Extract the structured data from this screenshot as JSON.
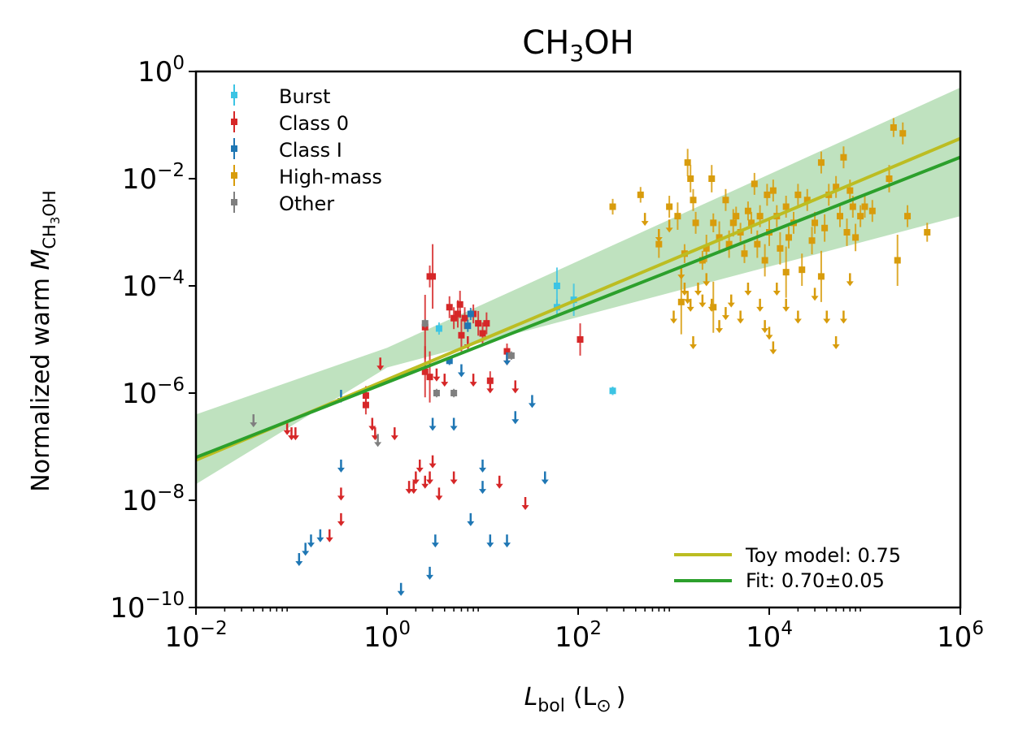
{
  "chart_data": {
    "type": "scatter",
    "title": "CH3OH",
    "title_parts": {
      "base": "CH",
      "sub": "3",
      "rest": "OH"
    },
    "xlabel": "L_bol (L_sun)",
    "xlabel_parts": {
      "main": "L",
      "sub": "bol",
      "unit": "(L",
      "unit_sym": "⊙",
      "unit_close": ")"
    },
    "ylabel": "Normalized warm M_CH3OH",
    "ylabel_parts": {
      "main": "Normalized warm ",
      "sym": "M",
      "sub1": "CH",
      "sub2": "3",
      "sub3": "OH"
    },
    "xscale": "log",
    "yscale": "log",
    "xlim": [
      0.01,
      1000000
    ],
    "ylim": [
      1e-10,
      1
    ],
    "x_tick_exponents": [
      -2,
      0,
      2,
      4,
      6
    ],
    "y_tick_exponents": [
      -10,
      -8,
      -6,
      -4,
      -2,
      0
    ],
    "tick_base": "10",
    "legend_position": "top-left",
    "fit_legend_position": "bottom-right",
    "series": [
      {
        "name": "Burst",
        "color": "#3cc4e4",
        "points": [
          [
            60,
            0.0001,
            2.2
          ],
          [
            60,
            4e-05,
            1.4
          ],
          [
            90,
            5.5e-05,
            2.0
          ],
          [
            230,
            1.1e-06,
            1.2
          ],
          [
            3.5,
            1.6e-05,
            1.3
          ]
        ],
        "upper_limits": []
      },
      {
        "name": "Class 0",
        "color": "#d62728",
        "points": [
          [
            0.6,
            9e-07,
            1.5
          ],
          [
            0.6,
            6e-07,
            1.5
          ],
          [
            2.5,
            2.5e-06,
            3
          ],
          [
            2.8,
            2e-06,
            3
          ],
          [
            2.8,
            0.00015,
            1.6
          ],
          [
            4.5,
            4e-05,
            1.6
          ],
          [
            5,
            2.5e-05,
            1.6
          ],
          [
            5.5,
            3e-05,
            1.8
          ],
          [
            5.8,
            4.5e-05,
            1.8
          ],
          [
            6,
            1.2e-05,
            2
          ],
          [
            6.5,
            2.5e-05,
            1.6
          ],
          [
            8,
            3e-05,
            1.5
          ],
          [
            9,
            2e-05,
            1.7
          ],
          [
            10,
            1.3e-05,
            1.6
          ],
          [
            11,
            2e-05,
            1.6
          ],
          [
            12,
            1.7e-06,
            1.5
          ],
          [
            18,
            6e-06,
            1.4
          ],
          [
            105,
            1e-05,
            2
          ],
          [
            2.5,
            1.7e-05,
            4
          ],
          [
            3,
            0.00015,
            4
          ]
        ],
        "upper_limits": [
          [
            0.09,
            2.5e-07
          ],
          [
            0.1,
            2e-07
          ],
          [
            0.11,
            2e-07
          ],
          [
            0.25,
            2.5e-09
          ],
          [
            0.33,
            5e-09
          ],
          [
            0.33,
            1.5e-08
          ],
          [
            0.7,
            3e-07
          ],
          [
            0.75,
            2e-07
          ],
          [
            0.85,
            4e-06
          ],
          [
            1.2,
            2e-07
          ],
          [
            1.7,
            2e-08
          ],
          [
            1.9,
            2e-08
          ],
          [
            2,
            3e-08
          ],
          [
            2.2,
            5e-08
          ],
          [
            2.5,
            2.5e-08
          ],
          [
            2.8,
            3e-08
          ],
          [
            3,
            6e-08
          ],
          [
            3.3,
            2.5e-06
          ],
          [
            3.5,
            1.5e-08
          ],
          [
            4,
            2e-06
          ],
          [
            5,
            3e-08
          ],
          [
            7,
            1e-05
          ],
          [
            8,
            2e-06
          ],
          [
            12,
            1.5e-06
          ],
          [
            15,
            2.5e-08
          ],
          [
            18,
            5e-06
          ],
          [
            22,
            1.5e-06
          ],
          [
            28,
            1e-08
          ]
        ]
      },
      {
        "name": "Class I",
        "color": "#1f77b4",
        "points": [
          [
            4.5,
            4e-06,
            1.2
          ],
          [
            7,
            1.8e-05,
            1.3
          ],
          [
            7.5,
            3e-05,
            1.3
          ]
        ],
        "upper_limits": [
          [
            0.12,
            9e-10
          ],
          [
            0.14,
            1.4e-09
          ],
          [
            0.16,
            2e-09
          ],
          [
            0.2,
            2.5e-09
          ],
          [
            0.33,
            5e-08
          ],
          [
            0.33,
            1e-06
          ],
          [
            1.4,
            2.5e-10
          ],
          [
            2.8,
            5e-10
          ],
          [
            3,
            3e-07
          ],
          [
            3.2,
            2e-09
          ],
          [
            5,
            3e-07
          ],
          [
            6,
            3e-06
          ],
          [
            7.5,
            5e-09
          ],
          [
            10,
            2e-08
          ],
          [
            10,
            5e-08
          ],
          [
            12,
            2e-09
          ],
          [
            18,
            2e-09
          ],
          [
            18,
            5e-06
          ],
          [
            22,
            4e-07
          ],
          [
            33,
            8e-07
          ],
          [
            45,
            3e-08
          ]
        ]
      },
      {
        "name": "High-mass",
        "color": "#d89c0c",
        "points": [
          [
            230,
            0.003,
            1.4
          ],
          [
            450,
            0.005,
            1.4
          ],
          [
            700,
            0.0006,
            1.8
          ],
          [
            900,
            0.003,
            1.6
          ],
          [
            1100,
            0.002,
            1.8
          ],
          [
            1300,
            0.0004,
            1.5
          ],
          [
            1400,
            0.02,
            1.8
          ],
          [
            1500,
            0.01,
            1.8
          ],
          [
            1600,
            0.004,
            1.6
          ],
          [
            1700,
            0.0015,
            1.6
          ],
          [
            2000,
            0.0003,
            1.5
          ],
          [
            2200,
            0.0005,
            1.8
          ],
          [
            2500,
            0.01,
            1.8
          ],
          [
            2600,
            0.0015,
            1.5
          ],
          [
            3000,
            0.0008,
            2
          ],
          [
            3500,
            0.004,
            1.6
          ],
          [
            3800,
            0.0006,
            1.8
          ],
          [
            4200,
            0.0015,
            1.8
          ],
          [
            4500,
            0.002,
            1.5
          ],
          [
            5000,
            0.001,
            1.5
          ],
          [
            5500,
            0.0004,
            1.5
          ],
          [
            6000,
            0.0025,
            1.5
          ],
          [
            6500,
            0.0015,
            1.6
          ],
          [
            7000,
            0.008,
            1.6
          ],
          [
            7500,
            0.0006,
            1.8
          ],
          [
            8000,
            0.002,
            1.6
          ],
          [
            9000,
            0.0003,
            2
          ],
          [
            9500,
            0.005,
            1.6
          ],
          [
            10000,
            0.001,
            1.8
          ],
          [
            11000,
            0.006,
            1.6
          ],
          [
            12000,
            0.002,
            1.6
          ],
          [
            13000,
            0.0005,
            2
          ],
          [
            15000,
            0.003,
            1.6
          ],
          [
            16000,
            0.0008,
            1.6
          ],
          [
            18000,
            0.0015,
            1.6
          ],
          [
            20000,
            0.005,
            1.6
          ],
          [
            22000,
            0.0002,
            2
          ],
          [
            25000,
            0.004,
            1.6
          ],
          [
            28000,
            0.0007,
            1.8
          ],
          [
            30000,
            0.0015,
            1.6
          ],
          [
            35000,
            0.02,
            1.6
          ],
          [
            38000,
            0.0012,
            1.8
          ],
          [
            42000,
            0.005,
            1.6
          ],
          [
            50000,
            0.007,
            1.6
          ],
          [
            55000,
            0.002,
            1.6
          ],
          [
            60000,
            0.025,
            1.6
          ],
          [
            65000,
            0.001,
            1.8
          ],
          [
            70000,
            0.006,
            1.6
          ],
          [
            75000,
            0.003,
            1.6
          ],
          [
            80000,
            0.0008,
            1.8
          ],
          [
            90000,
            0.002,
            1.6
          ],
          [
            100000,
            0.003,
            1.6
          ],
          [
            120000,
            0.0025,
            1.6
          ],
          [
            180000,
            0.01,
            1.8
          ],
          [
            200000,
            0.09,
            1.5
          ],
          [
            250000,
            0.07,
            1.6
          ],
          [
            280000,
            0.002,
            1.6
          ],
          [
            450000,
            0.001,
            1.5
          ],
          [
            220000,
            0.0003,
            3
          ],
          [
            15000,
            0.00018,
            3
          ],
          [
            35000,
            0.00015,
            3
          ],
          [
            1200,
            5e-05,
            4
          ],
          [
            2600,
            4e-05,
            3
          ]
        ],
        "upper_limits": [
          [
            500,
            0.002
          ],
          [
            700,
            0.001
          ],
          [
            900,
            0.0015
          ],
          [
            1000,
            3e-05
          ],
          [
            1200,
            0.0002
          ],
          [
            1300,
            0.0001
          ],
          [
            1400,
            7e-05
          ],
          [
            1500,
            5e-05
          ],
          [
            1600,
            1e-05
          ],
          [
            1800,
            0.0001
          ],
          [
            2000,
            6e-05
          ],
          [
            2200,
            0.00015
          ],
          [
            2500,
            5e-05
          ],
          [
            3000,
            2e-05
          ],
          [
            3500,
            3.5e-05
          ],
          [
            4000,
            6e-05
          ],
          [
            5000,
            3e-05
          ],
          [
            6000,
            0.0001
          ],
          [
            8000,
            5e-05
          ],
          [
            9000,
            2e-05
          ],
          [
            10000,
            1.5e-05
          ],
          [
            11000,
            8e-06
          ],
          [
            12000,
            0.0001
          ],
          [
            15000,
            5e-05
          ],
          [
            20000,
            3e-05
          ],
          [
            30000,
            8e-05
          ],
          [
            40000,
            3e-05
          ],
          [
            50000,
            1e-05
          ],
          [
            60000,
            3e-05
          ],
          [
            70000,
            0.00015
          ]
        ]
      },
      {
        "name": "Other",
        "color": "#7f7f7f",
        "points": [
          [
            2.5,
            2e-05,
            1.2
          ],
          [
            3.3,
            1e-06,
            1.2
          ],
          [
            5,
            1e-06,
            1.2
          ],
          [
            20,
            5e-06,
            1.2
          ]
        ],
        "upper_limits": [
          [
            0.04,
            3.5e-07
          ],
          [
            0.8,
            1.5e-07
          ]
        ]
      }
    ],
    "lines": [
      {
        "name": "Toy model: 0.75",
        "color": "#bcbd22",
        "slope": 0.75,
        "intercept_log": -5.75
      },
      {
        "name": "Fit: 0.70±0.05",
        "color": "#2ca02c",
        "slope": 0.7,
        "intercept_log": -5.8,
        "band": {
          "at_min": [
            2e-08,
            4e-07
          ],
          "at_pivot_x": 1,
          "pivot": [
            3e-06,
            7e-06
          ],
          "at_max": [
            0.002,
            0.5
          ]
        },
        "band_color": "#2ca02c"
      }
    ]
  }
}
